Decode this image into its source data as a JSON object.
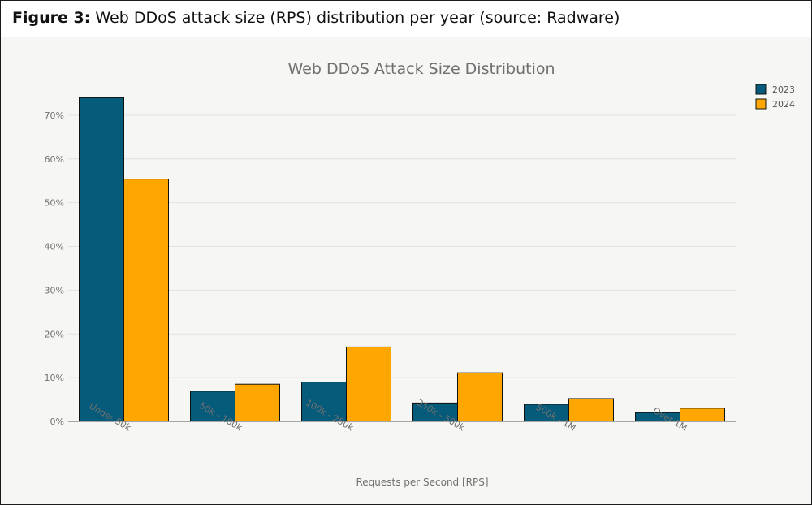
{
  "figure": {
    "label": "Figure 3:",
    "caption": "Web DDoS attack size (RPS) distribution per year (source: Radware)"
  },
  "chart_data": {
    "type": "bar",
    "title": "Web DDoS Attack Size Distribution",
    "xlabel": "Requests per Second [RPS]",
    "ylabel": "",
    "categories": [
      "Under 50k",
      "50k - 100k",
      "100k - 250k",
      "250k - 500k",
      "500k - 1M",
      "Over 1M"
    ],
    "series": [
      {
        "name": "2023",
        "color": "#065a7a",
        "values": [
          74,
          6.9,
          9,
          4.2,
          3.9,
          2
        ]
      },
      {
        "name": "2024",
        "color": "#ffa600",
        "values": [
          55.4,
          8.5,
          17,
          11.1,
          5.2,
          3
        ]
      }
    ],
    "ylim": [
      0,
      75
    ],
    "yticks": [
      0,
      10,
      20,
      30,
      40,
      50,
      60,
      70
    ],
    "ytick_format": "percent",
    "grid": true,
    "legend": "top-right"
  }
}
